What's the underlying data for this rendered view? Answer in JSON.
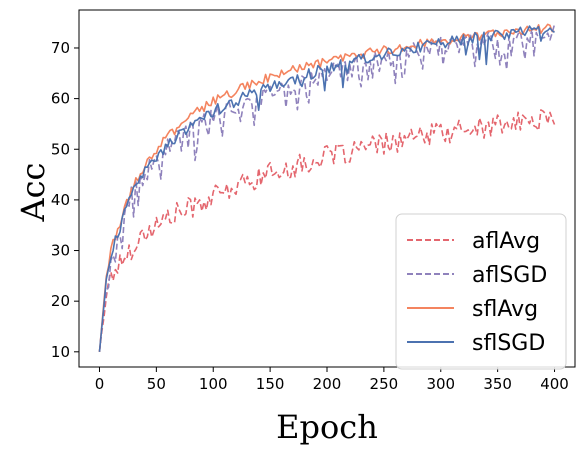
{
  "chart_data": {
    "type": "line",
    "xlabel": "Epoch",
    "ylabel": "Acc",
    "xlim": [
      -18,
      418
    ],
    "ylim": [
      7,
      77.5
    ],
    "xticks": [
      0,
      50,
      100,
      150,
      200,
      250,
      300,
      350,
      400
    ],
    "yticks": [
      10,
      20,
      30,
      40,
      50,
      60,
      70
    ],
    "grid": false,
    "legend_position": "lower-right",
    "series": [
      {
        "name": "aflAvg",
        "color": "#e4666e",
        "linestyle": "dashed",
        "x": [
          0,
          5,
          10,
          20,
          30,
          40,
          50,
          60,
          70,
          80,
          100,
          120,
          140,
          160,
          180,
          200,
          220,
          240,
          260,
          280,
          300,
          320,
          340,
          360,
          380,
          400
        ],
        "y": [
          10,
          20,
          25,
          28,
          31,
          33.5,
          35,
          36.5,
          37.5,
          38.5,
          40.5,
          42.5,
          44.5,
          46,
          47,
          48.5,
          49.5,
          50.5,
          51.5,
          52.3,
          53.2,
          53.8,
          54.4,
          55,
          55.5,
          56.5
        ]
      },
      {
        "name": "aflSGD",
        "color": "#8f82bc",
        "linestyle": "dashed",
        "x": [
          0,
          5,
          10,
          20,
          30,
          40,
          50,
          60,
          70,
          80,
          100,
          120,
          140,
          160,
          180,
          200,
          220,
          240,
          260,
          280,
          300,
          320,
          340,
          360,
          380,
          400
        ],
        "y": [
          10,
          22,
          28,
          36,
          42,
          45,
          48,
          51,
          52.5,
          54,
          56.5,
          58.5,
          60.5,
          62,
          63.5,
          65,
          66.5,
          67.5,
          68.5,
          69.5,
          70.5,
          71,
          71.5,
          72,
          72.5,
          73
        ]
      },
      {
        "name": "sflAvg",
        "color": "#f4845f",
        "linestyle": "solid",
        "x": [
          0,
          5,
          10,
          20,
          30,
          40,
          50,
          60,
          70,
          80,
          100,
          120,
          140,
          160,
          180,
          200,
          220,
          240,
          260,
          280,
          300,
          320,
          340,
          360,
          380,
          400
        ],
        "y": [
          10,
          23,
          30,
          37,
          43,
          47,
          50,
          52.5,
          54.5,
          56.5,
          59.5,
          61.5,
          63.5,
          65,
          66.2,
          67.3,
          68.3,
          69.2,
          70,
          70.8,
          71.4,
          72,
          72.6,
          73.1,
          73.6,
          74
        ]
      },
      {
        "name": "sflSGD",
        "color": "#4c72b0",
        "linestyle": "solid",
        "x": [
          0,
          5,
          10,
          20,
          30,
          40,
          50,
          60,
          70,
          80,
          100,
          120,
          140,
          160,
          180,
          200,
          220,
          240,
          260,
          280,
          300,
          320,
          340,
          360,
          380,
          400
        ],
        "y": [
          10,
          22,
          29,
          36,
          42,
          46,
          48.5,
          51,
          53,
          54.5,
          57.5,
          59.5,
          61.5,
          63,
          64.5,
          66,
          67.3,
          68.3,
          69.3,
          70.2,
          71,
          71.7,
          72.3,
          72.9,
          73.4,
          74
        ]
      }
    ]
  }
}
